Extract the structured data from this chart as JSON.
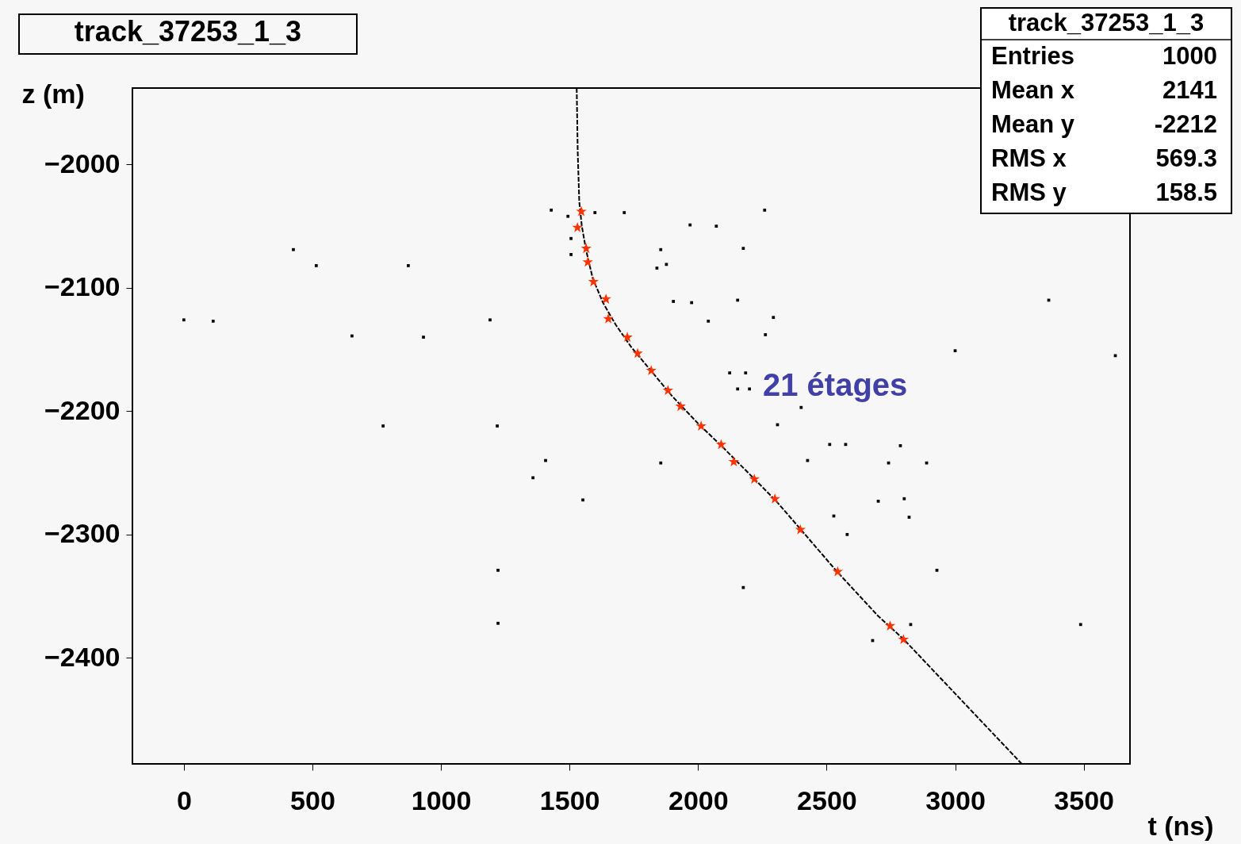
{
  "chart_data": {
    "type": "scatter",
    "title": "track_37253_1_3",
    "xlabel": "t (ns)",
    "ylabel": "z (m)",
    "xlim": [
      -200,
      3680
    ],
    "ylim": [
      -2486,
      -1938
    ],
    "xticks": [
      0,
      500,
      1000,
      1500,
      2000,
      2500,
      3000,
      3500
    ],
    "yticks": [
      -2000,
      -2100,
      -2200,
      -2300,
      -2400
    ],
    "grid": false,
    "annotations": [
      "21 étages",
      "track_37253_1_3",
      "Entries",
      "1000",
      "Mean x",
      "2141",
      "Mean y",
      "-2212",
      "RMS x",
      "569.3",
      "RMS y",
      "158.5"
    ],
    "series": [
      {
        "color": "#000000",
        "marker": "square",
        "x": [
          0,
          114,
          426,
          515,
          654,
          873,
          932,
          1219,
          775,
          1191,
          1429,
          1494,
          1506,
          1506,
          1599,
          1713,
          1855,
          1840,
          1877,
          1904,
          1975,
          1969,
          2071,
          2176,
          2259,
          2154,
          2040,
          2293,
          2262,
          3000,
          3364,
          3623,
          2123,
          2185,
          2154,
          2200,
          2401,
          2309,
          2512,
          2574,
          2787,
          2426,
          2741,
          2889,
          1855,
          1407,
          1358,
          1552,
          2701,
          2802,
          2821,
          2528,
          2580,
          2929,
          1222,
          2176,
          1222,
          3488,
          2679,
          2827
        ],
        "values": [
          -2126,
          -2127,
          -2069,
          -2082,
          -2139,
          -2082,
          -2140,
          -2212,
          -2212,
          -2126,
          -2037,
          -2042,
          -2060,
          -2073,
          -2039,
          -2039,
          -2069,
          -2084,
          -2081,
          -2111,
          -2112,
          -2049,
          -2050,
          -2068,
          -2037,
          -2110,
          -2127,
          -2124,
          -2138,
          -2151,
          -2110,
          -2155,
          -2169,
          -2169,
          -2182,
          -2182,
          -2197,
          -2211,
          -2227,
          -2227,
          -2228,
          -2240,
          -2242,
          -2242,
          -2242,
          -2240,
          -2254,
          -2272,
          -2273,
          -2271,
          -2286,
          -2285,
          -2300,
          -2329,
          -2329,
          -2343,
          -2372,
          -2373,
          -2386,
          -2373
        ]
      },
      {
        "type": "line",
        "color": "#000000",
        "marker": "none",
        "line_style": "dashed",
        "x": [
          1528,
          1532,
          1538,
          1548,
          1565,
          1590,
          1630,
          1680,
          1740,
          1820,
          1900,
          2000,
          2100,
          2200,
          2300,
          2400,
          2540,
          2700,
          2800,
          2900,
          3000,
          3100,
          3200,
          3259
        ],
        "values": [
          -1938,
          -1990,
          -2030,
          -2050,
          -2070,
          -2092,
          -2112,
          -2130,
          -2148,
          -2168,
          -2188,
          -2210,
          -2230,
          -2251,
          -2272,
          -2296,
          -2330,
          -2366,
          -2385,
          -2407,
          -2429,
          -2451,
          -2473,
          -2486
        ]
      },
      {
        "type": "scatter",
        "color": "#ff3300",
        "marker": "star",
        "x": [
          1546,
          1531,
          1565,
          1571,
          1593,
          1642,
          1651,
          1725,
          1765,
          1818,
          1883,
          1932,
          2012,
          2090,
          2139,
          2219,
          2299,
          2398,
          2543,
          2747,
          2799
        ],
        "values": [
          -2038,
          -2051,
          -2068,
          -2079,
          -2095,
          -2109,
          -2125,
          -2140,
          -2153,
          -2167,
          -2183,
          -2196,
          -2212,
          -2227,
          -2241,
          -2255,
          -2271,
          -2296,
          -2330,
          -2374,
          -2385
        ]
      }
    ]
  }
}
